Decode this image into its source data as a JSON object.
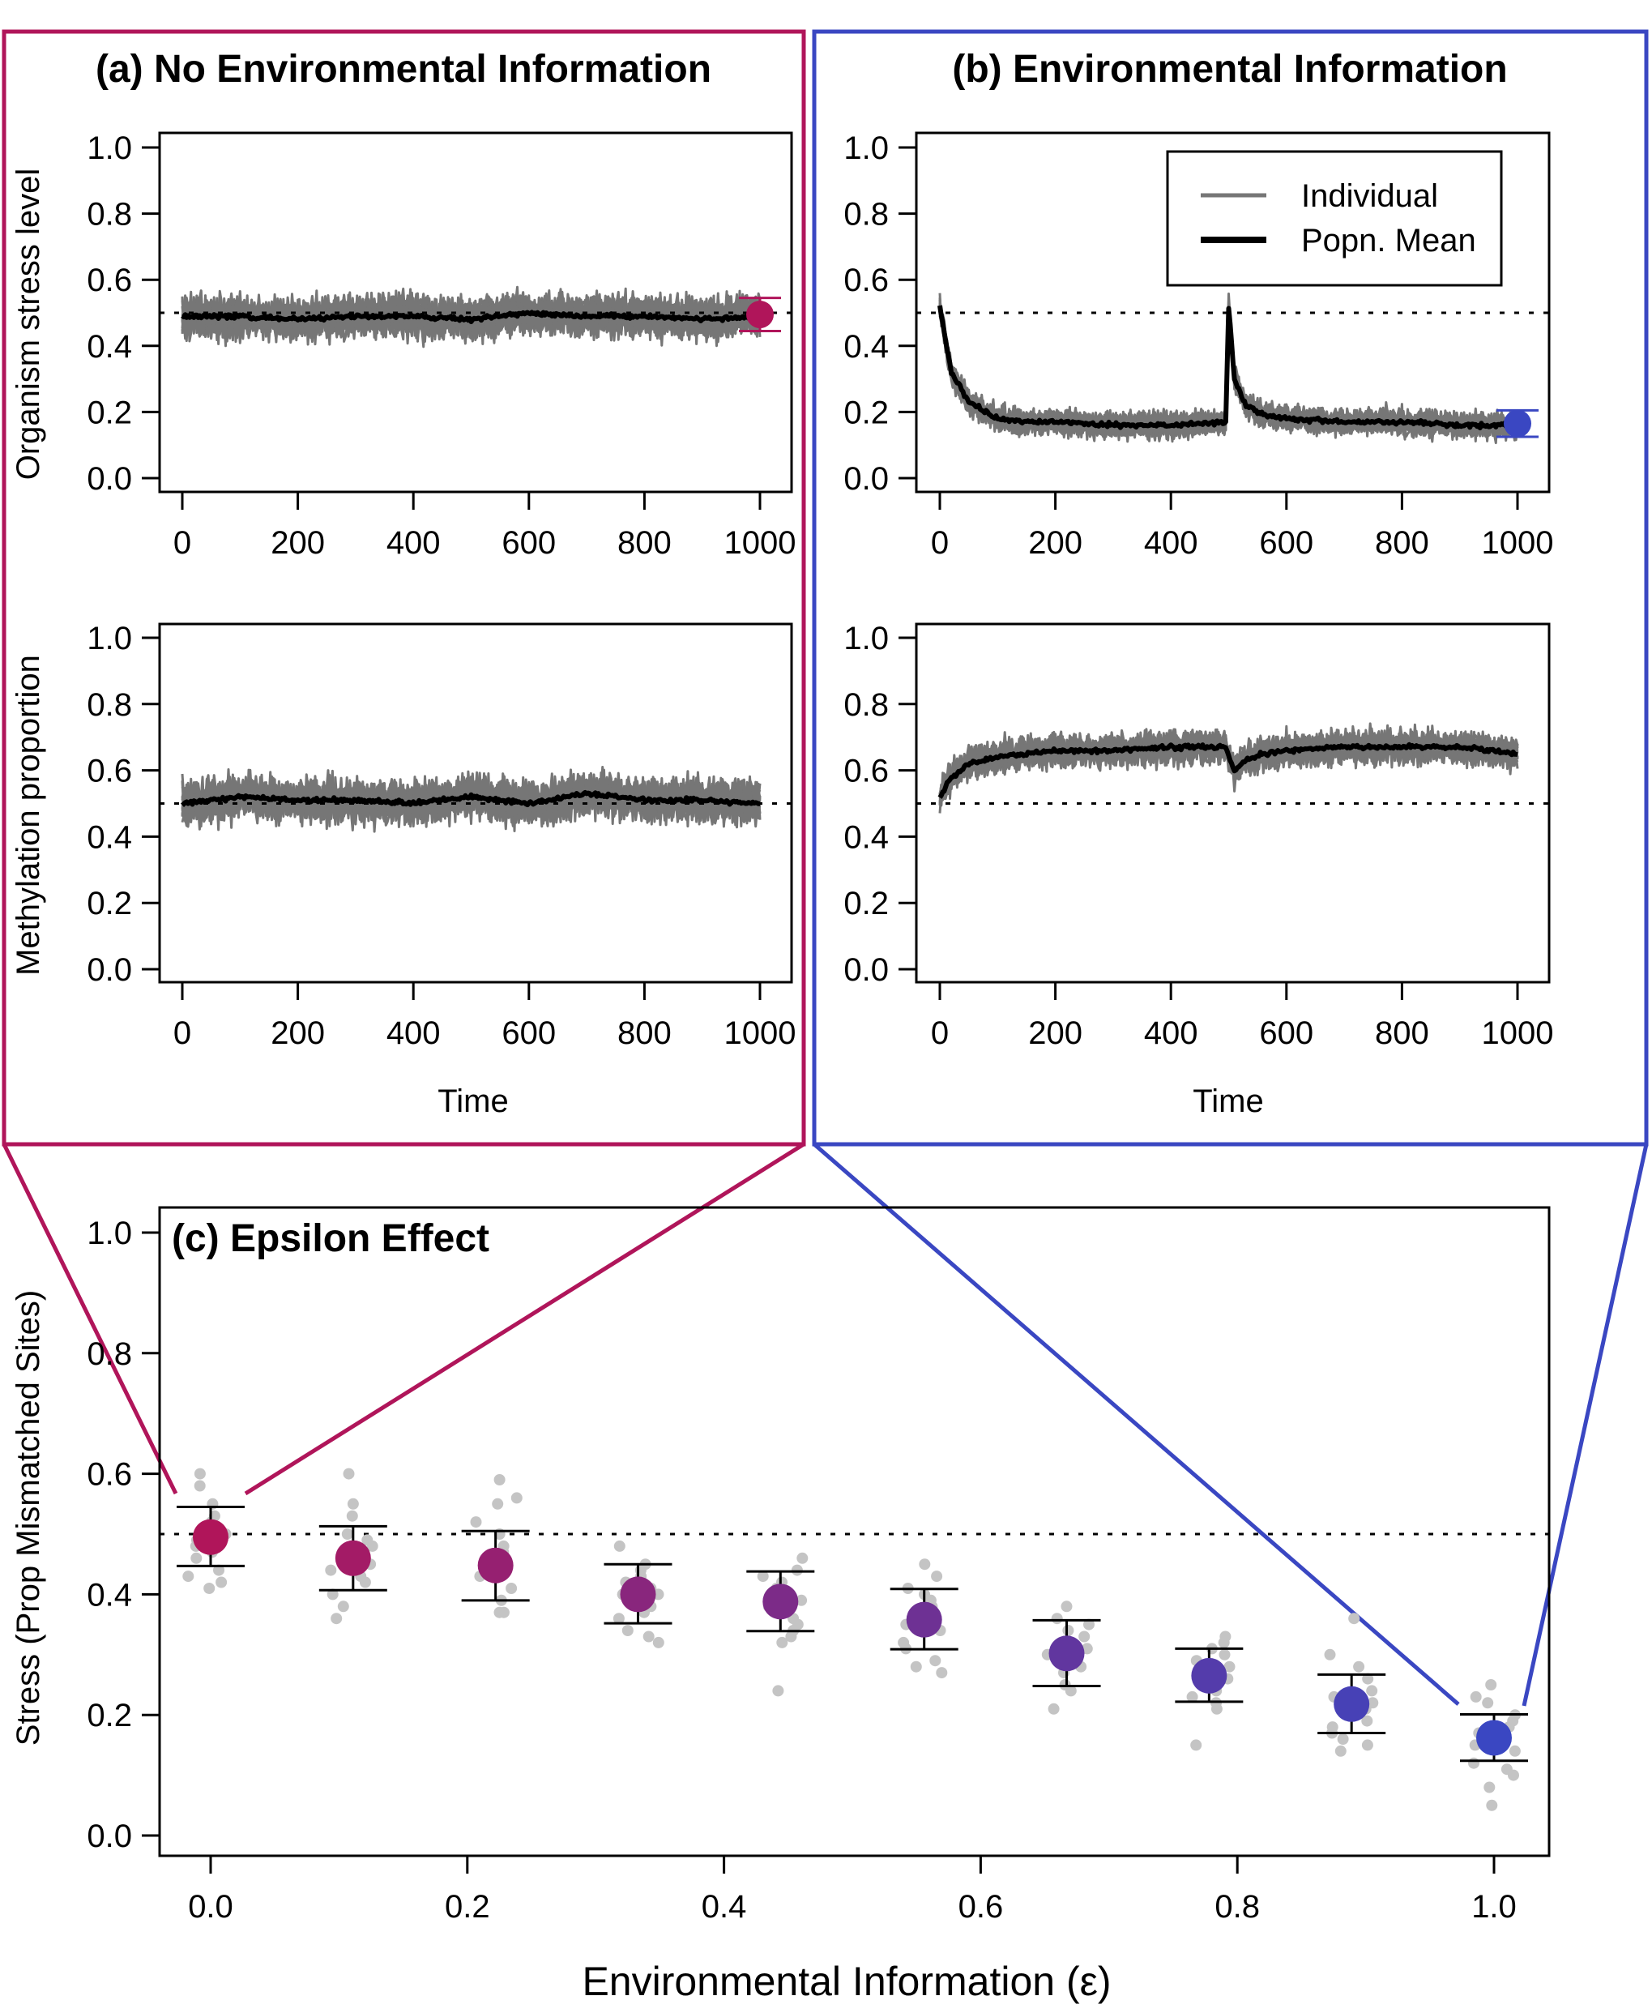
{
  "colors": {
    "panel_a": "#b0155a",
    "panel_b": "#3a47c2",
    "individual": "#767676",
    "mean": "#000000",
    "jitter": "#c4c4c4"
  },
  "chart_data": [
    {
      "type": "line",
      "panel": "a-top",
      "title": "(a) No Environmental Information",
      "ylabel": "Organism stress level",
      "xlabel": "",
      "xlim": [
        0,
        1000
      ],
      "ylim": [
        0,
        1
      ],
      "x_ticks": [
        "0",
        "200",
        "400",
        "600",
        "800",
        "1000"
      ],
      "y_ticks": [
        "0.0",
        "0.2",
        "0.4",
        "0.6",
        "0.8",
        "1.0"
      ],
      "series": [
        {
          "x": [
            0,
            100,
            200,
            300,
            400,
            500,
            600,
            700,
            800,
            900,
            1000
          ],
          "values": [
            0.49,
            0.49,
            0.48,
            0.49,
            0.49,
            0.48,
            0.5,
            0.49,
            0.49,
            0.48,
            0.49
          ]
        }
      ],
      "individual_band": {
        "lower": 0.36,
        "upper": 0.62
      },
      "endpoint": {
        "x": 1000,
        "y": 0.495,
        "err": 0.05
      },
      "reference_line": 0.5
    },
    {
      "type": "line",
      "panel": "a-bottom",
      "ylabel": "Methylation proportion",
      "xlabel": "Time",
      "xlim": [
        0,
        1000
      ],
      "ylim": [
        0,
        1
      ],
      "x_ticks": [
        "0",
        "200",
        "400",
        "600",
        "800",
        "1000"
      ],
      "y_ticks": [
        "0.0",
        "0.2",
        "0.4",
        "0.6",
        "0.8",
        "1.0"
      ],
      "series": [
        {
          "x": [
            0,
            100,
            200,
            300,
            400,
            500,
            600,
            700,
            800,
            900,
            1000
          ],
          "values": [
            0.5,
            0.52,
            0.51,
            0.51,
            0.5,
            0.52,
            0.5,
            0.53,
            0.51,
            0.51,
            0.5
          ]
        }
      ],
      "individual_band": {
        "lower": 0.37,
        "upper": 0.64
      },
      "reference_line": 0.5
    },
    {
      "type": "line",
      "panel": "b-top",
      "title": "(b) Environmental Information",
      "ylabel": "",
      "xlabel": "",
      "xlim": [
        0,
        1000
      ],
      "ylim": [
        0,
        1
      ],
      "x_ticks": [
        "0",
        "200",
        "400",
        "600",
        "800",
        "1000"
      ],
      "y_ticks": [
        "0.0",
        "0.2",
        "0.4",
        "0.6",
        "0.8",
        "1.0"
      ],
      "legend": {
        "position": "top-right",
        "entries": [
          "Individual",
          "Popn. Mean"
        ]
      },
      "series": [
        {
          "x": [
            0,
            20,
            50,
            100,
            150,
            200,
            300,
            400,
            495,
            500,
            510,
            530,
            560,
            600,
            700,
            800,
            900,
            1000
          ],
          "values": [
            0.52,
            0.32,
            0.23,
            0.18,
            0.17,
            0.17,
            0.16,
            0.16,
            0.17,
            0.52,
            0.3,
            0.22,
            0.19,
            0.18,
            0.17,
            0.17,
            0.16,
            0.16
          ]
        }
      ],
      "individual_band": {
        "spread": 0.04
      },
      "endpoint": {
        "x": 1000,
        "y": 0.165,
        "err": 0.04
      },
      "reference_line": 0.5
    },
    {
      "type": "line",
      "panel": "b-bottom",
      "ylabel": "",
      "xlabel": "Time",
      "xlim": [
        0,
        1000
      ],
      "ylim": [
        0,
        1
      ],
      "x_ticks": [
        "0",
        "200",
        "400",
        "600",
        "800",
        "1000"
      ],
      "y_ticks": [
        "0.0",
        "0.2",
        "0.4",
        "0.6",
        "0.8",
        "1.0"
      ],
      "series": [
        {
          "x": [
            0,
            20,
            50,
            100,
            150,
            200,
            300,
            400,
            495,
            500,
            510,
            530,
            560,
            600,
            700,
            800,
            900,
            1000
          ],
          "values": [
            0.52,
            0.58,
            0.62,
            0.64,
            0.65,
            0.66,
            0.66,
            0.67,
            0.67,
            0.64,
            0.6,
            0.63,
            0.65,
            0.66,
            0.67,
            0.67,
            0.67,
            0.65
          ]
        }
      ],
      "individual_band": {
        "spread": 0.05
      },
      "reference_line": 0.5
    },
    {
      "type": "scatter",
      "panel": "c",
      "title": "(c) Epsilon Effect",
      "xlabel": "Environmental Information (ε)",
      "ylabel": "Stress (Prop Mismatched Sites)",
      "xlim": [
        0,
        1
      ],
      "ylim": [
        0,
        1
      ],
      "x_ticks": [
        "0.0",
        "0.2",
        "0.4",
        "0.6",
        "0.8",
        "1.0"
      ],
      "y_ticks": [
        "0.0",
        "0.2",
        "0.4",
        "0.6",
        "0.8",
        "1.0"
      ],
      "reference_line": 0.5,
      "x": [
        0.0,
        0.111,
        0.222,
        0.333,
        0.444,
        0.556,
        0.667,
        0.778,
        0.889,
        1.0
      ],
      "mean": [
        0.495,
        0.46,
        0.448,
        0.4,
        0.388,
        0.358,
        0.302,
        0.265,
        0.218,
        0.162
      ],
      "err_low": [
        0.447,
        0.407,
        0.39,
        0.352,
        0.339,
        0.309,
        0.248,
        0.222,
        0.17,
        0.124
      ],
      "err_high": [
        0.545,
        0.513,
        0.505,
        0.45,
        0.438,
        0.409,
        0.357,
        0.31,
        0.267,
        0.201
      ],
      "replicates": [
        [
          0.6,
          0.58,
          0.55,
          0.52,
          0.5,
          0.49,
          0.47,
          0.46,
          0.44,
          0.43,
          0.42,
          0.41,
          0.5,
          0.48,
          0.53
        ],
        [
          0.6,
          0.55,
          0.53,
          0.5,
          0.48,
          0.47,
          0.45,
          0.44,
          0.42,
          0.4,
          0.38,
          0.36,
          0.46,
          0.49,
          0.43
        ],
        [
          0.59,
          0.56,
          0.55,
          0.52,
          0.5,
          0.48,
          0.46,
          0.45,
          0.43,
          0.41,
          0.39,
          0.37,
          0.37,
          0.47,
          0.44
        ],
        [
          0.48,
          0.45,
          0.44,
          0.42,
          0.41,
          0.4,
          0.39,
          0.38,
          0.37,
          0.36,
          0.34,
          0.33,
          0.32,
          0.43,
          0.4
        ],
        [
          0.46,
          0.44,
          0.43,
          0.41,
          0.4,
          0.39,
          0.38,
          0.37,
          0.36,
          0.34,
          0.33,
          0.32,
          0.24,
          0.42,
          0.35
        ],
        [
          0.45,
          0.43,
          0.41,
          0.4,
          0.38,
          0.37,
          0.36,
          0.35,
          0.34,
          0.32,
          0.31,
          0.29,
          0.28,
          0.27,
          0.39
        ],
        [
          0.38,
          0.36,
          0.35,
          0.33,
          0.32,
          0.31,
          0.3,
          0.29,
          0.28,
          0.27,
          0.25,
          0.24,
          0.21,
          0.3,
          0.34
        ],
        [
          0.33,
          0.32,
          0.3,
          0.29,
          0.28,
          0.27,
          0.26,
          0.25,
          0.24,
          0.23,
          0.22,
          0.21,
          0.15,
          0.28,
          0.31
        ],
        [
          0.36,
          0.3,
          0.28,
          0.26,
          0.24,
          0.23,
          0.22,
          0.21,
          0.2,
          0.19,
          0.18,
          0.17,
          0.16,
          0.15,
          0.14
        ],
        [
          0.25,
          0.23,
          0.22,
          0.2,
          0.19,
          0.18,
          0.17,
          0.16,
          0.15,
          0.14,
          0.12,
          0.11,
          0.1,
          0.08,
          0.05
        ]
      ]
    }
  ]
}
